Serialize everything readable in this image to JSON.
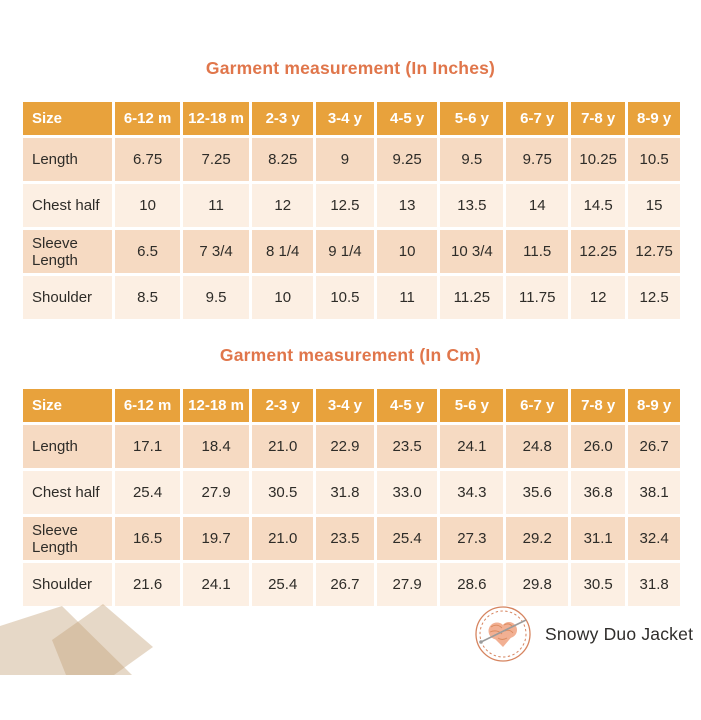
{
  "colors": {
    "title_text": "#e0764b",
    "header_bg": "#e8a23c",
    "header_text": "#ffffff",
    "row_dark": "#f6dac2",
    "row_light": "#fcefe3",
    "cell_text": "#2e2c28",
    "decor_tan": "#c3a379",
    "logo_ring": "#d6845f",
    "logo_yarn": "#f2b093",
    "brand_text": "#2f2d2b"
  },
  "tables": [
    {
      "title": "Garment measurement (In Inches)",
      "header": [
        "Size",
        "6-12 m",
        "12-18 m",
        "2-3 y",
        "3-4 y",
        "4-5 y",
        "5-6 y",
        "6-7 y",
        "7-8 y",
        "8-9 y"
      ],
      "rows": [
        {
          "label": "Length",
          "values": [
            "6.75",
            "7.25",
            "8.25",
            "9",
            "9.25",
            "9.5",
            "9.75",
            "10.25",
            "10.5"
          ]
        },
        {
          "label": "Chest half",
          "values": [
            "10",
            "11",
            "12",
            "12.5",
            "13",
            "13.5",
            "14",
            "14.5",
            "15"
          ]
        },
        {
          "label": "Sleeve Length",
          "values": [
            "6.5",
            "7 3/4",
            "8 1/4",
            "9 1/4",
            "10",
            "10 3/4",
            "11.5",
            "12.25",
            "12.75"
          ]
        },
        {
          "label": "Shoulder",
          "values": [
            "8.5",
            "9.5",
            "10",
            "10.5",
            "11",
            "11.25",
            "11.75",
            "12",
            "12.5"
          ]
        }
      ]
    },
    {
      "title": "Garment measurement (In Cm)",
      "header": [
        "Size",
        "6-12 m",
        "12-18 m",
        "2-3 y",
        "3-4 y",
        "4-5 y",
        "5-6 y",
        "6-7 y",
        "7-8 y",
        "8-9 y"
      ],
      "rows": [
        {
          "label": "Length",
          "values": [
            "17.1",
            "18.4",
            "21.0",
            "22.9",
            "23.5",
            "24.1",
            "24.8",
            "26.0",
            "26.7"
          ]
        },
        {
          "label": "Chest half",
          "values": [
            "25.4",
            "27.9",
            "30.5",
            "31.8",
            "33.0",
            "34.3",
            "35.6",
            "36.8",
            "38.1"
          ]
        },
        {
          "label": "Sleeve Length",
          "values": [
            "16.5",
            "19.7",
            "21.0",
            "23.5",
            "25.4",
            "27.3",
            "29.2",
            "31.1",
            "32.4"
          ]
        },
        {
          "label": "Shoulder",
          "values": [
            "21.6",
            "24.1",
            "25.4",
            "26.7",
            "27.9",
            "28.6",
            "29.8",
            "30.5",
            "31.8"
          ]
        }
      ]
    }
  ],
  "logo": {
    "icon": "yarn-heart-badge-icon",
    "label": "Snowy Duo Jacket"
  }
}
